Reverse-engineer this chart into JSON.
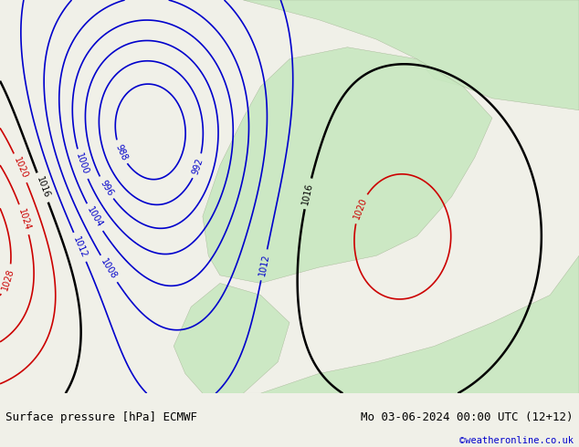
{
  "title_left": "Surface pressure [hPa] ECMWF",
  "title_right": "Mo 03-06-2024 00:00 UTC (12+12)",
  "copyright": "©weatheronline.co.uk",
  "bg_color": "#f0f0e8",
  "land_color": "#c8e8c0",
  "sea_color": "#d8e8f0",
  "text_color_black": "#000000",
  "text_color_blue": "#0000cc",
  "text_color_red": "#cc0000",
  "bottom_bar_color": "#e8e8e8",
  "figsize": [
    6.34,
    4.9
  ],
  "dpi": 100
}
